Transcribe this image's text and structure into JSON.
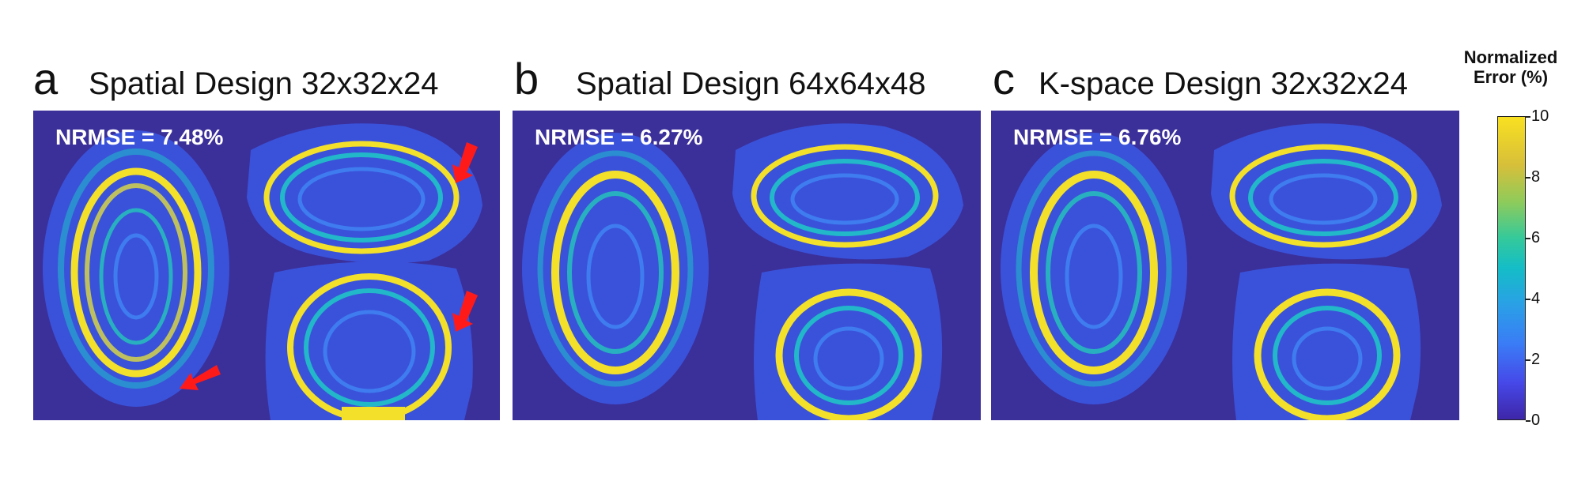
{
  "panels": [
    {
      "letter": "a",
      "title": "Spatial Design 32x32x24",
      "nrmse": "NRMSE = 7.48%",
      "arrows": true
    },
    {
      "letter": "b",
      "title": "Spatial Design 64x64x48",
      "nrmse": "NRMSE = 6.27%",
      "arrows": false
    },
    {
      "letter": "c",
      "title": "K-space Design 32x32x24",
      "nrmse": "NRMSE = 6.76%",
      "arrows": false
    }
  ],
  "colorbar": {
    "title_line1": "Normalized",
    "title_line2": "Error (%)",
    "ticks": [
      "10",
      "8",
      "6",
      "4",
      "2",
      "0"
    ],
    "range": [
      0,
      10
    ]
  },
  "colors": {
    "background": "#3b2f9a",
    "tissue": "#3a52d9",
    "ring": "#f3e02a",
    "mid": "#22b7c9",
    "arrow": "#ff1a1a"
  }
}
